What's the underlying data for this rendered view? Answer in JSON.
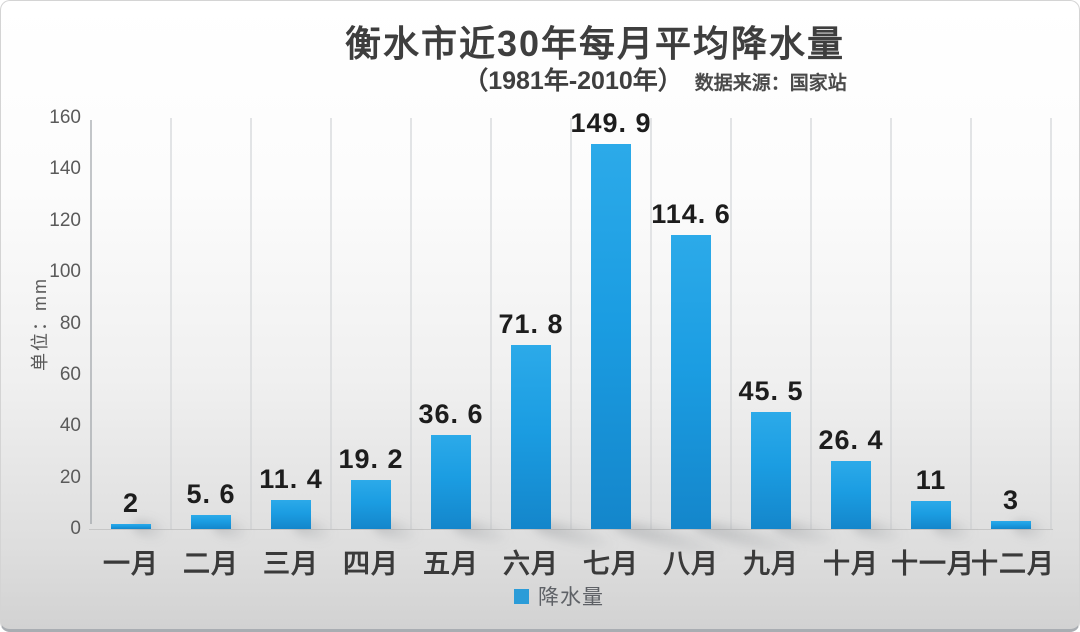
{
  "chart_data": {
    "type": "bar",
    "title": "衡水市近30年每月平均降水量",
    "subtitle_period": "（1981年-2010年）",
    "subtitle_source": "数据来源：国家站",
    "unit_label": "单位：mm",
    "categories": [
      "一月",
      "二月",
      "三月",
      "四月",
      "五月",
      "六月",
      "七月",
      "八月",
      "九月",
      "十月",
      "十一月",
      "十二月"
    ],
    "series": [
      {
        "name": "降水量",
        "values": [
          2,
          5.6,
          11.4,
          19.2,
          36.6,
          71.8,
          149.9,
          114.6,
          45.5,
          26.4,
          11,
          3
        ]
      }
    ],
    "value_labels": [
      "2",
      "5. 6",
      "11. 4",
      "19. 2",
      "36. 6",
      "71. 8",
      "149. 9",
      "114. 6",
      "45. 5",
      "26. 4",
      "11",
      "3"
    ],
    "yticks": [
      0,
      20,
      40,
      60,
      80,
      100,
      120,
      140,
      160
    ],
    "ylim": [
      0,
      160
    ],
    "xlabel": "",
    "ylabel": "单位：mm",
    "grid": "vertical-only",
    "legend_position": "bottom-center",
    "colors": {
      "bar_top": "#2caae9",
      "bar_bottom": "#1486cb",
      "legend_square": "#2b9cd8",
      "title_text": "#3e3e3e",
      "tick_text": "#5a5a5a"
    }
  }
}
